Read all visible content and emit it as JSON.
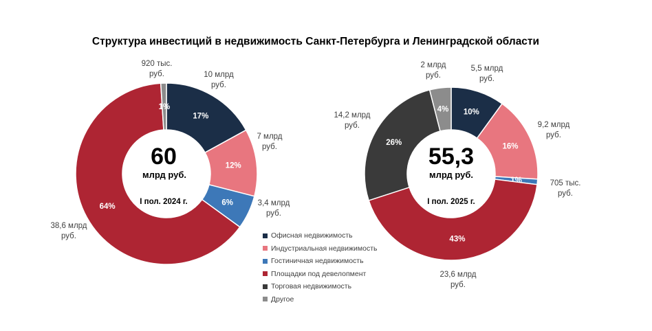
{
  "title": "Структура инвестиций в недвижимость Санкт-Петербурга и Ленинградской области",
  "colors": {
    "office": "#1b2e47",
    "industrial": "#e8767f",
    "hotel": "#3d78b8",
    "development": "#ae2533",
    "retail": "#3a3a3a",
    "other": "#8c8c8c"
  },
  "legend": [
    {
      "key": "office",
      "label": "Офисная недвижимость"
    },
    {
      "key": "industrial",
      "label": "Индустриальная недвижимость"
    },
    {
      "key": "hotel",
      "label": "Гостиничная недвижимость"
    },
    {
      "key": "development",
      "label": "Площадки под девелопмент"
    },
    {
      "key": "retail",
      "label": "Торговая недвижимость"
    },
    {
      "key": "other",
      "label": "Другое"
    }
  ],
  "chart_data": [
    {
      "type": "pie",
      "center_value": "60",
      "center_unit": "млрд руб.",
      "center_period": "I пол. 2024 г.",
      "slices": [
        {
          "key": "office",
          "percent": 17,
          "label": "17%",
          "amount": [
            "10 млрд",
            "руб."
          ]
        },
        {
          "key": "industrial",
          "percent": 12,
          "label": "12%",
          "amount": [
            "7 млрд",
            "руб."
          ]
        },
        {
          "key": "hotel",
          "percent": 6,
          "label": "6%",
          "amount": [
            "3,4 млрд",
            "руб."
          ]
        },
        {
          "key": "development",
          "percent": 64,
          "label": "64%",
          "amount": [
            "38,6 млрд",
            "руб."
          ]
        },
        {
          "key": "other",
          "percent": 1,
          "label": "1%",
          "amount": [
            "920 тыс.",
            "руб."
          ]
        }
      ]
    },
    {
      "type": "pie",
      "center_value": "55,3",
      "center_unit": "млрд руб.",
      "center_period": "I пол. 2025 г.",
      "slices": [
        {
          "key": "office",
          "percent": 10,
          "label": "10%",
          "amount": [
            "5,5 млрд",
            "руб."
          ]
        },
        {
          "key": "industrial",
          "percent": 16,
          "label": "16%",
          "amount": [
            "9,2 млрд",
            "руб."
          ]
        },
        {
          "key": "hotel",
          "percent": 1,
          "label": "1%",
          "amount": [
            "705 тыс.",
            "руб."
          ]
        },
        {
          "key": "development",
          "percent": 43,
          "label": "43%",
          "amount": [
            "23,6 млрд",
            "руб."
          ]
        },
        {
          "key": "retail",
          "percent": 26,
          "label": "26%",
          "amount": [
            "14,2 млрд",
            "руб."
          ]
        },
        {
          "key": "other",
          "percent": 4,
          "label": "4%",
          "amount": [
            "2 млрд",
            "руб."
          ]
        }
      ]
    }
  ]
}
